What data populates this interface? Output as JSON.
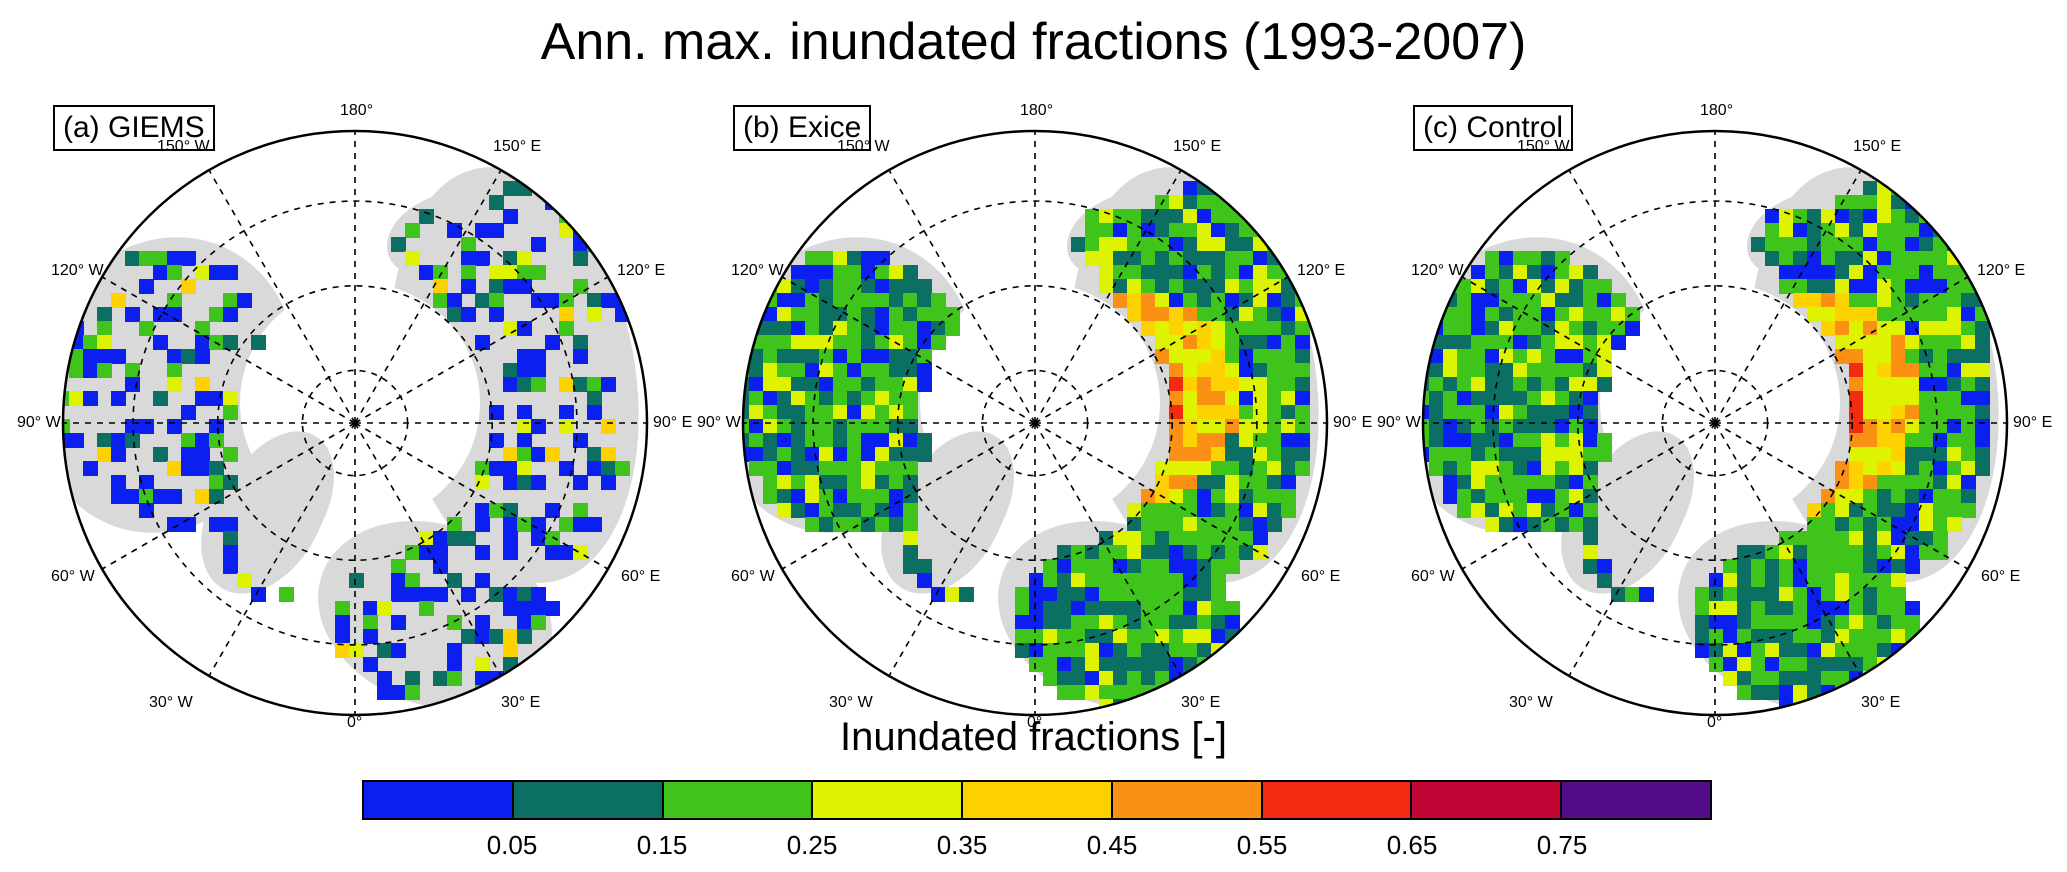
{
  "title": "Ann. max. inundated fractions (1993-2007)",
  "colorbar": {
    "title": "Inundated fractions [-]",
    "ticks": [
      "0.05",
      "0.15",
      "0.25",
      "0.35",
      "0.45",
      "0.55",
      "0.65",
      "0.75"
    ],
    "colors": [
      "#0a1ff0",
      "#0b6f63",
      "#3ec41b",
      "#def300",
      "#fdd200",
      "#fb9114",
      "#f32c10",
      "#c20535",
      "#540c8a"
    ]
  },
  "longitude_labels": {
    "top": "180°",
    "bottom": "0°",
    "left": "90° W",
    "right": "90° E",
    "upper_left": "150° W",
    "upper_right": "150° E",
    "mid_upper_left": "120° W",
    "mid_upper_right": "120° E",
    "mid_lower_left": "60° W",
    "mid_lower_right": "60° E",
    "lower_left": "30° W",
    "lower_right": "30° E"
  },
  "panels": [
    {
      "label": "(a) GIEMS"
    },
    {
      "label": "(b) Exice"
    },
    {
      "label": "(c) Control"
    }
  ],
  "colors": {
    "land_no_data": "#d9d9d9",
    "ocean": "#ffffff",
    "frame": "#000000"
  }
}
